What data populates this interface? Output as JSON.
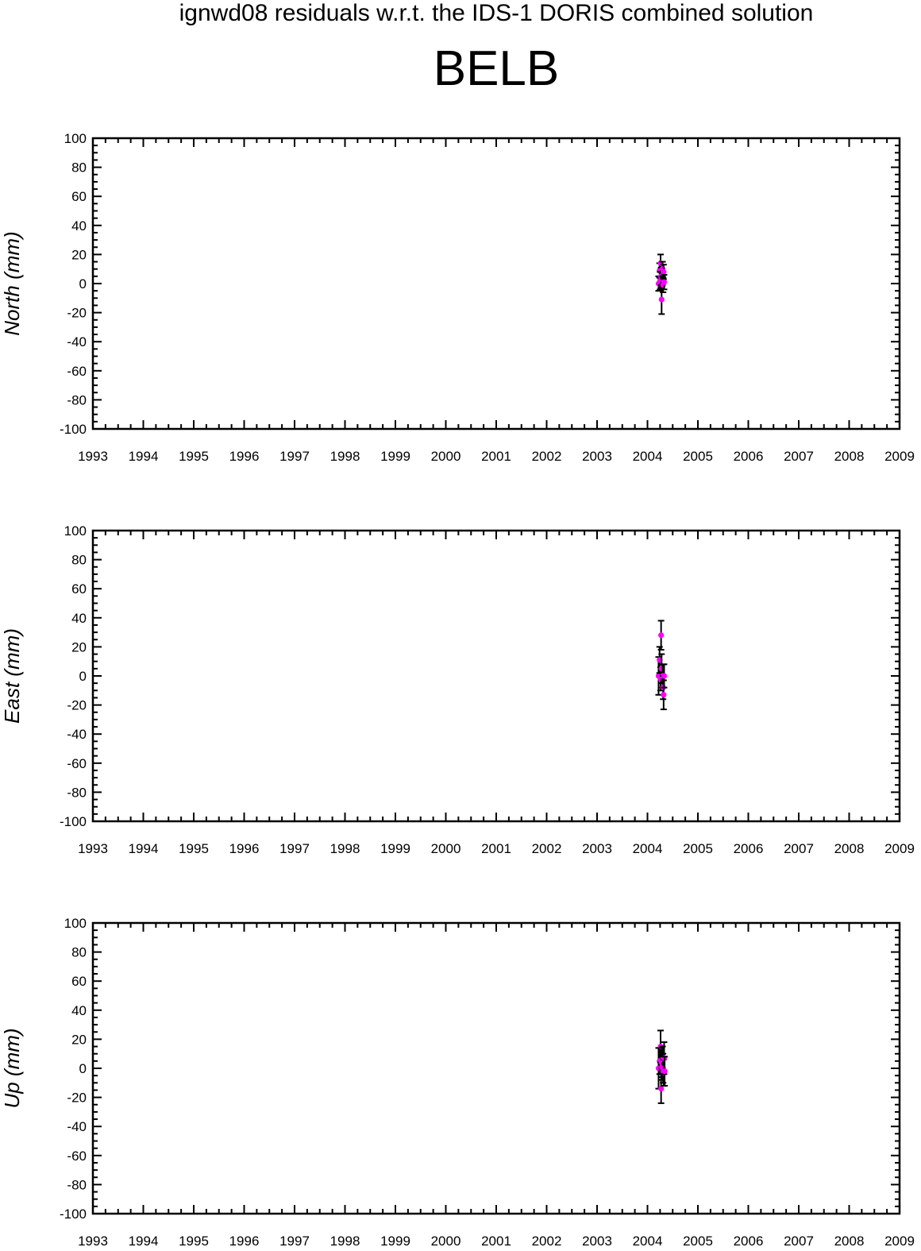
{
  "figure": {
    "title": "ignwd08 residuals w.r.t. the IDS-1 DORIS combined solution",
    "station": "BELB"
  },
  "colors": {
    "marker": "#ff00ff",
    "errorbar": "#000000",
    "axes": "#000000",
    "background": "#ffffff"
  },
  "chart_data": [
    {
      "type": "scatter",
      "title": "",
      "xlabel": "",
      "ylabel": "North (mm)",
      "xlim": [
        1993,
        2009
      ],
      "ylim": [
        -100,
        100
      ],
      "x_ticks": [
        1993,
        1994,
        1995,
        1996,
        1997,
        1998,
        1999,
        2000,
        2001,
        2002,
        2003,
        2004,
        2005,
        2006,
        2007,
        2008,
        2009
      ],
      "y_ticks": [
        -100,
        -80,
        -60,
        -40,
        -20,
        0,
        20,
        40,
        60,
        80,
        100
      ],
      "grid": false,
      "legend": "none",
      "series": [
        {
          "points": [
            {
              "x": 2004.22,
              "y": 0,
              "err": 5
            },
            {
              "x": 2004.24,
              "y": 9,
              "err": 5
            },
            {
              "x": 2004.25,
              "y": 2,
              "err": 6
            },
            {
              "x": 2004.26,
              "y": 14,
              "err": 6
            },
            {
              "x": 2004.27,
              "y": 5,
              "err": 6
            },
            {
              "x": 2004.28,
              "y": -11,
              "err": 10
            },
            {
              "x": 2004.29,
              "y": 3,
              "err": 5
            },
            {
              "x": 2004.3,
              "y": 10,
              "err": 5
            },
            {
              "x": 2004.31,
              "y": -1,
              "err": 5
            },
            {
              "x": 2004.32,
              "y": 8,
              "err": 5
            },
            {
              "x": 2004.33,
              "y": 1,
              "err": 5
            }
          ]
        }
      ]
    },
    {
      "type": "scatter",
      "title": "",
      "xlabel": "",
      "ylabel": "East (mm)",
      "xlim": [
        1993,
        2009
      ],
      "ylim": [
        -100,
        100
      ],
      "x_ticks": [
        1993,
        1994,
        1995,
        1996,
        1997,
        1998,
        1999,
        2000,
        2001,
        2002,
        2003,
        2004,
        2005,
        2006,
        2007,
        2008,
        2009
      ],
      "y_ticks": [
        -100,
        -80,
        -60,
        -40,
        -20,
        0,
        20,
        40,
        60,
        80,
        100
      ],
      "grid": false,
      "legend": "none",
      "series": [
        {
          "points": [
            {
              "x": 2004.22,
              "y": 0,
              "err": 13
            },
            {
              "x": 2004.24,
              "y": 11,
              "err": 9
            },
            {
              "x": 2004.26,
              "y": -2,
              "err": 8
            },
            {
              "x": 2004.27,
              "y": 28,
              "err": 10
            },
            {
              "x": 2004.28,
              "y": 5,
              "err": 10
            },
            {
              "x": 2004.3,
              "y": 0,
              "err": 8
            },
            {
              "x": 2004.31,
              "y": -8,
              "err": 8
            },
            {
              "x": 2004.32,
              "y": -13,
              "err": 10
            },
            {
              "x": 2004.33,
              "y": 0,
              "err": 8
            }
          ]
        }
      ]
    },
    {
      "type": "scatter",
      "title": "",
      "xlabel": "",
      "ylabel": "Up (mm)",
      "xlim": [
        1993,
        2009
      ],
      "ylim": [
        -100,
        100
      ],
      "x_ticks": [
        1993,
        1994,
        1995,
        1996,
        1997,
        1998,
        1999,
        2000,
        2001,
        2002,
        2003,
        2004,
        2005,
        2006,
        2007,
        2008,
        2009
      ],
      "y_ticks": [
        -100,
        -80,
        -60,
        -40,
        -20,
        0,
        20,
        40,
        60,
        80,
        100
      ],
      "grid": false,
      "legend": "none",
      "series": [
        {
          "points": [
            {
              "x": 2004.22,
              "y": 0,
              "err": 14
            },
            {
              "x": 2004.24,
              "y": 5,
              "err": 9
            },
            {
              "x": 2004.26,
              "y": 15,
              "err": 11
            },
            {
              "x": 2004.27,
              "y": -14,
              "err": 10
            },
            {
              "x": 2004.28,
              "y": 4,
              "err": 10
            },
            {
              "x": 2004.29,
              "y": 1,
              "err": 9
            },
            {
              "x": 2004.3,
              "y": 6,
              "err": 9
            },
            {
              "x": 2004.31,
              "y": 0,
              "err": 10
            },
            {
              "x": 2004.32,
              "y": -3,
              "err": 9
            },
            {
              "x": 2004.33,
              "y": 7,
              "err": 11
            },
            {
              "x": 2004.34,
              "y": -2,
              "err": 10
            }
          ]
        }
      ]
    }
  ]
}
